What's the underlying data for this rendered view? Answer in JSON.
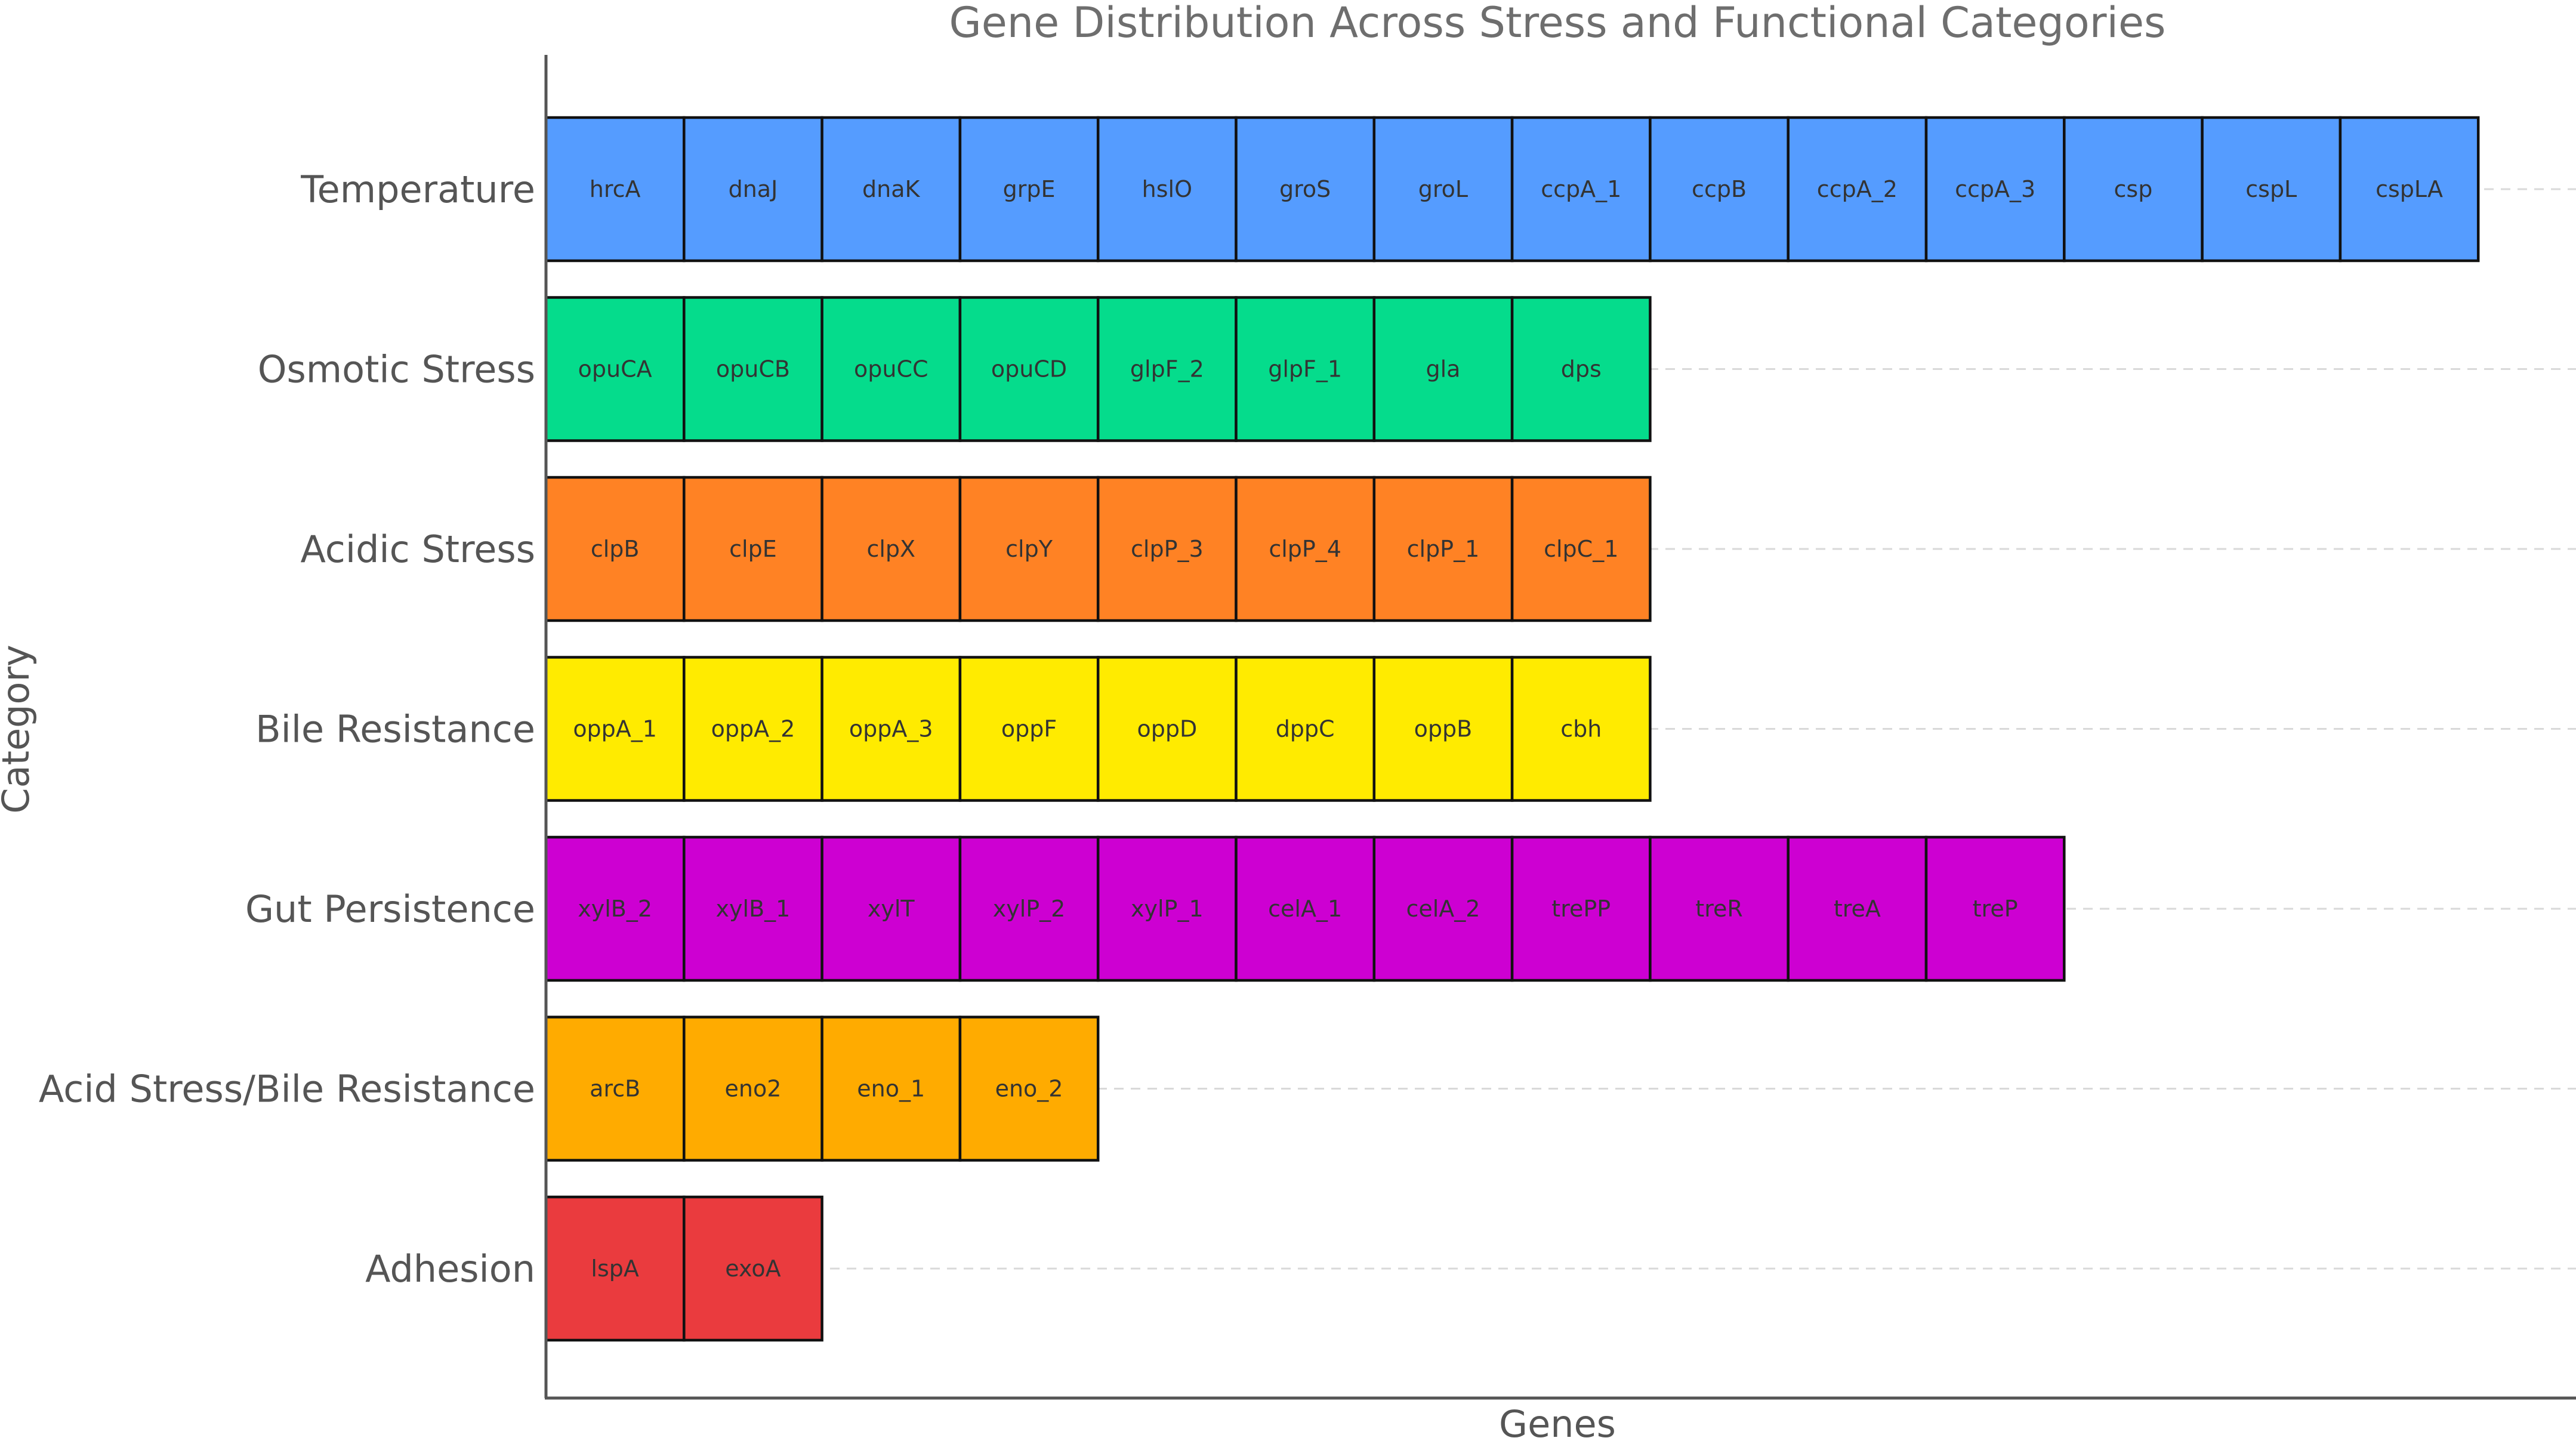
{
  "chart_data": {
    "type": "bar",
    "title": "Gene Distribution Across Stress and Functional Categories",
    "xlabel": "Genes",
    "ylabel": "Category",
    "grid": "horizontal dashed",
    "categories": [
      "Temperature",
      "Osmotic Stress",
      "Acidic Stress",
      "Bile Resistance",
      "Gut Persistence",
      "Acid Stress/Bile Resistance",
      "Adhesion"
    ],
    "values": [
      14,
      8,
      8,
      8,
      11,
      4,
      2
    ],
    "colors": [
      "#559cff",
      "#05dc8c",
      "#ff8224",
      "#ffeb00",
      "#cd00d2",
      "#ffab00",
      "#ea3b3e"
    ],
    "genes": [
      [
        "hrcA",
        "dnaJ",
        "dnaK",
        "grpE",
        "hslO",
        "groS",
        "groL",
        "ccpA_1",
        "ccpB",
        "ccpA_2",
        "ccpA_3",
        "csp",
        "cspL",
        "cspLA"
      ],
      [
        "opuCA",
        "opuCB",
        "opuCC",
        "opuCD",
        "glpF_2",
        "glpF_1",
        "gla",
        "dps"
      ],
      [
        "clpB",
        "clpE",
        "clpX",
        "clpY",
        "clpP_3",
        "clpP_4",
        "clpP_1",
        "clpC_1"
      ],
      [
        "oppA_1",
        "oppA_2",
        "oppA_3",
        "oppF",
        "oppD",
        "dppC",
        "oppB",
        "cbh"
      ],
      [
        "xylB_2",
        "xylB_1",
        "xylT",
        "xylP_2",
        "xylP_1",
        "celA_1",
        "celA_2",
        "trePP",
        "treR",
        "treA",
        "treP"
      ],
      [
        "arcB",
        "eno2",
        "eno_1",
        "eno_2"
      ],
      [
        "lspA",
        "exoA"
      ]
    ]
  }
}
